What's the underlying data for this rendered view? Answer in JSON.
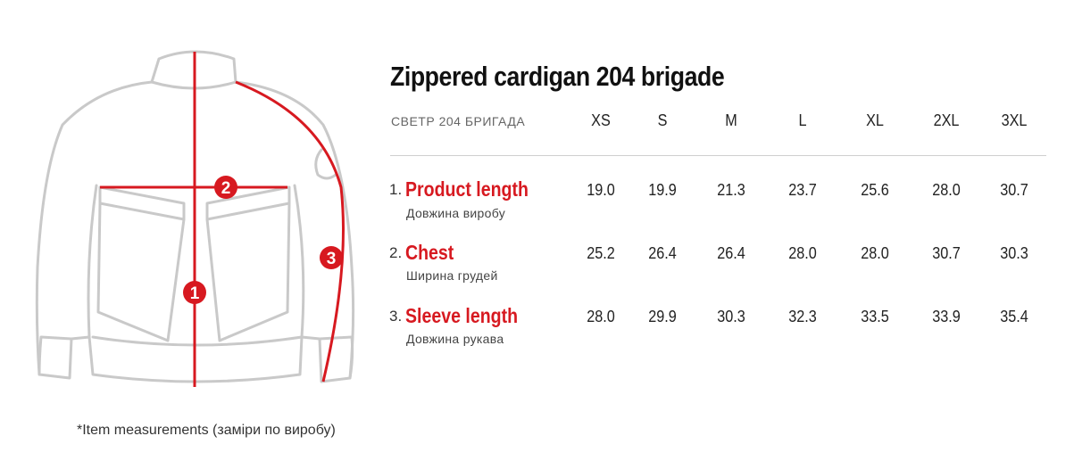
{
  "title": "Zippered cardigan 204 brigade",
  "subtitle": "СВЕТР 204 БРИГАДА",
  "sizes": [
    "XS",
    "S",
    "M",
    "L",
    "XL",
    "2XL",
    "3XL"
  ],
  "rows": [
    {
      "num": "1.",
      "name": "Product length",
      "sub": "Довжина виробу",
      "values": [
        "19.0",
        "19.9",
        "21.3",
        "23.7",
        "25.6",
        "28.0",
        "30.7"
      ]
    },
    {
      "num": "2.",
      "name": "Chest",
      "sub": "Ширина грудей",
      "values": [
        "25.2",
        "26.4",
        "26.4",
        "28.0",
        "28.0",
        "30.7",
        "30.3"
      ]
    },
    {
      "num": "3.",
      "name": "Sleeve length",
      "sub": "Довжина рукава",
      "values": [
        "28.0",
        "29.9",
        "30.3",
        "32.3",
        "33.5",
        "33.9",
        "35.4"
      ]
    }
  ],
  "markers": [
    "1",
    "2",
    "3"
  ],
  "footnote": "*Item measurements (заміри по виробу)",
  "colors": {
    "accent": "#d71920",
    "sketch": "#c9c9c9"
  }
}
